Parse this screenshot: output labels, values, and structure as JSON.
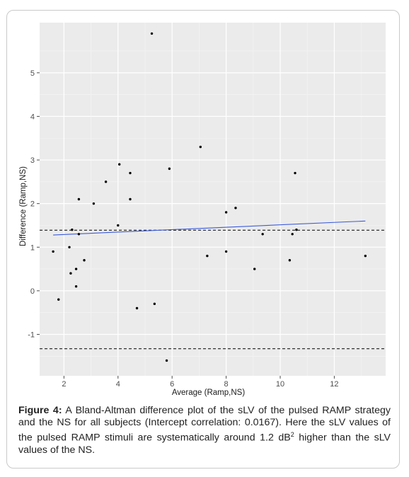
{
  "chart_data": {
    "type": "scatter",
    "title": "",
    "xlabel": "Average (Ramp,NS)",
    "ylabel": "Difference (Ramp,NS)",
    "xlim": [
      1.1,
      13.9
    ],
    "ylim": [
      -1.95,
      6.15
    ],
    "x_ticks": [
      2,
      4,
      6,
      8,
      10,
      12
    ],
    "y_ticks": [
      -1,
      0,
      1,
      2,
      3,
      4,
      5
    ],
    "grid": true,
    "points": [
      {
        "x": 1.6,
        "y": 0.9
      },
      {
        "x": 1.8,
        "y": -0.2
      },
      {
        "x": 2.2,
        "y": 1.0
      },
      {
        "x": 2.25,
        "y": 0.4
      },
      {
        "x": 2.3,
        "y": 1.4
      },
      {
        "x": 2.45,
        "y": 0.5
      },
      {
        "x": 2.45,
        "y": 0.1
      },
      {
        "x": 2.55,
        "y": 1.3
      },
      {
        "x": 2.55,
        "y": 2.1
      },
      {
        "x": 2.75,
        "y": 0.7
      },
      {
        "x": 3.1,
        "y": 2.0
      },
      {
        "x": 3.55,
        "y": 2.5
      },
      {
        "x": 4.0,
        "y": 1.5
      },
      {
        "x": 4.05,
        "y": 2.9
      },
      {
        "x": 4.45,
        "y": 2.7
      },
      {
        "x": 4.45,
        "y": 2.1
      },
      {
        "x": 4.7,
        "y": -0.4
      },
      {
        "x": 5.25,
        "y": 5.9
      },
      {
        "x": 5.35,
        "y": -0.3
      },
      {
        "x": 5.8,
        "y": -1.6
      },
      {
        "x": 5.9,
        "y": 2.8
      },
      {
        "x": 7.05,
        "y": 3.3
      },
      {
        "x": 7.3,
        "y": 0.8
      },
      {
        "x": 8.0,
        "y": 1.8
      },
      {
        "x": 8.0,
        "y": 0.9
      },
      {
        "x": 8.35,
        "y": 1.9
      },
      {
        "x": 9.05,
        "y": 0.5
      },
      {
        "x": 9.35,
        "y": 1.3
      },
      {
        "x": 10.35,
        "y": 0.7
      },
      {
        "x": 10.45,
        "y": 1.3
      },
      {
        "x": 10.55,
        "y": 2.7
      },
      {
        "x": 10.6,
        "y": 1.4
      },
      {
        "x": 13.15,
        "y": 0.8
      }
    ],
    "regression_line": {
      "x": [
        1.6,
        13.15
      ],
      "y": [
        1.28,
        1.6
      ],
      "color": "#3b5bdb"
    },
    "reference_lines": [
      {
        "y": 1.39,
        "style": "dashed",
        "color": "#000000"
      },
      {
        "y": -1.33,
        "style": "dashed",
        "color": "#000000"
      }
    ],
    "colors": {
      "panel": "#ebebeb",
      "grid": "#ffffff",
      "point": "#000000"
    }
  },
  "caption": {
    "label": "Figure 4:",
    "text_before_sup": " A Bland-Altman difference plot of the sLV of the pulsed RAMP strategy and the NS for all subjects (Intercept correlation: 0.0167). Here the sLV values of the pulsed RAMP stimuli are systematically around 1.2 dB",
    "sup": "2",
    "text_after_sup": " higher than the sLV values of the NS."
  }
}
